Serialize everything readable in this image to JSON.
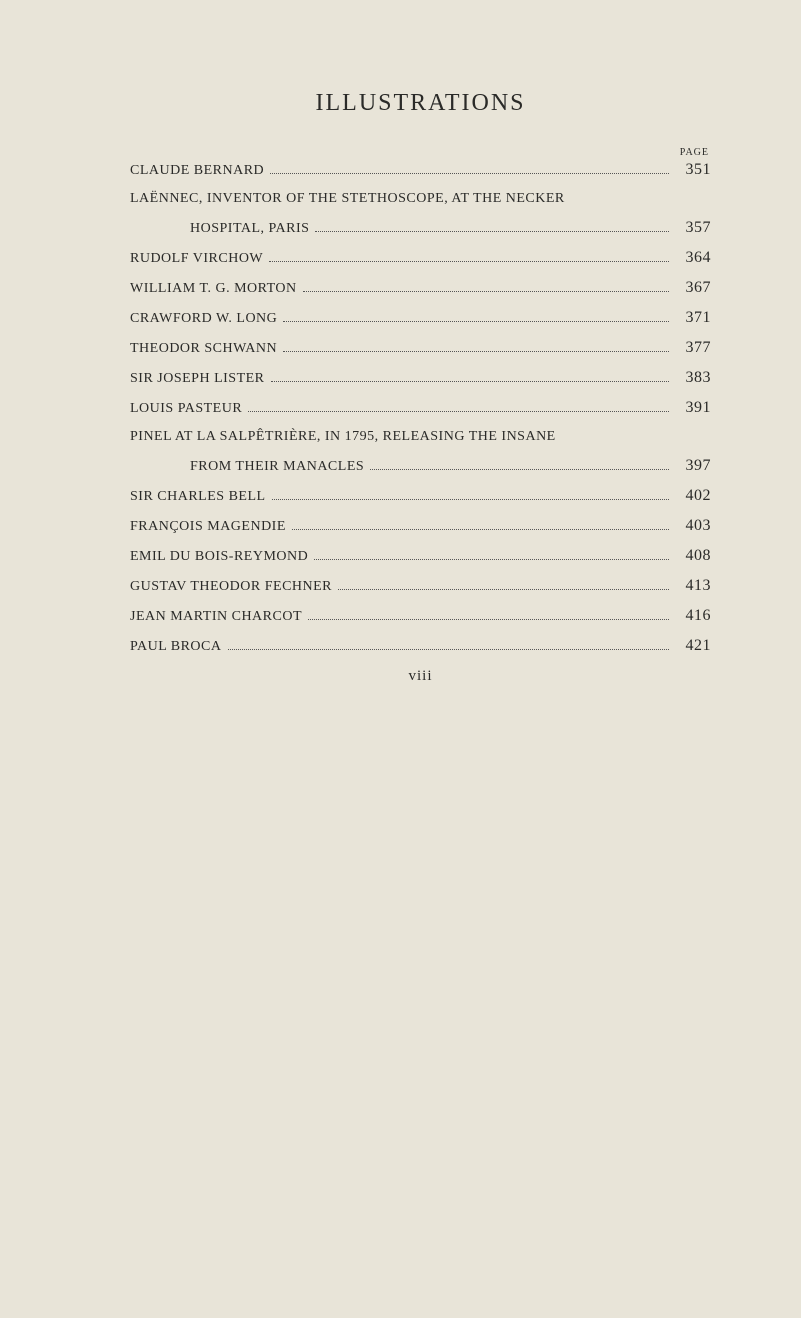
{
  "title": "ILLUSTRATIONS",
  "page_col_header": "PAGE",
  "roman_numeral": "viii",
  "entries": [
    {
      "label": "CLAUDE BERNARD",
      "page": "351",
      "indent": false,
      "continues": false
    },
    {
      "label": "LAËNNEC, INVENTOR OF THE STETHOSCOPE, AT THE NECKER",
      "page": "",
      "indent": false,
      "continues": true
    },
    {
      "label": "HOSPITAL, PARIS",
      "page": "357",
      "indent": true,
      "continues": false
    },
    {
      "label": "RUDOLF VIRCHOW",
      "page": "364",
      "indent": false,
      "continues": false
    },
    {
      "label": "WILLIAM T. G. MORTON",
      "page": "367",
      "indent": false,
      "continues": false
    },
    {
      "label": "CRAWFORD W. LONG",
      "page": "371",
      "indent": false,
      "continues": false
    },
    {
      "label": "THEODOR SCHWANN",
      "page": "377",
      "indent": false,
      "continues": false
    },
    {
      "label": "SIR JOSEPH LISTER",
      "page": "383",
      "indent": false,
      "continues": false
    },
    {
      "label": "LOUIS PASTEUR",
      "page": "391",
      "indent": false,
      "continues": false
    },
    {
      "label": "PINEL AT LA SALPÊTRIÈRE, IN 1795, RELEASING THE INSANE",
      "page": "",
      "indent": false,
      "continues": true
    },
    {
      "label": "FROM THEIR MANACLES",
      "page": "397",
      "indent": true,
      "continues": false
    },
    {
      "label": "SIR CHARLES BELL",
      "page": "402",
      "indent": false,
      "continues": false
    },
    {
      "label": "FRANÇOIS MAGENDIE",
      "page": "403",
      "indent": false,
      "continues": false
    },
    {
      "label": "EMIL DU BOIS-REYMOND",
      "page": "408",
      "indent": false,
      "continues": false
    },
    {
      "label": "GUSTAV THEODOR FECHNER",
      "page": "413",
      "indent": false,
      "continues": false
    },
    {
      "label": "JEAN MARTIN CHARCOT",
      "page": "416",
      "indent": false,
      "continues": false
    },
    {
      "label": "PAUL BROCA",
      "page": "421",
      "indent": false,
      "continues": false
    }
  ]
}
